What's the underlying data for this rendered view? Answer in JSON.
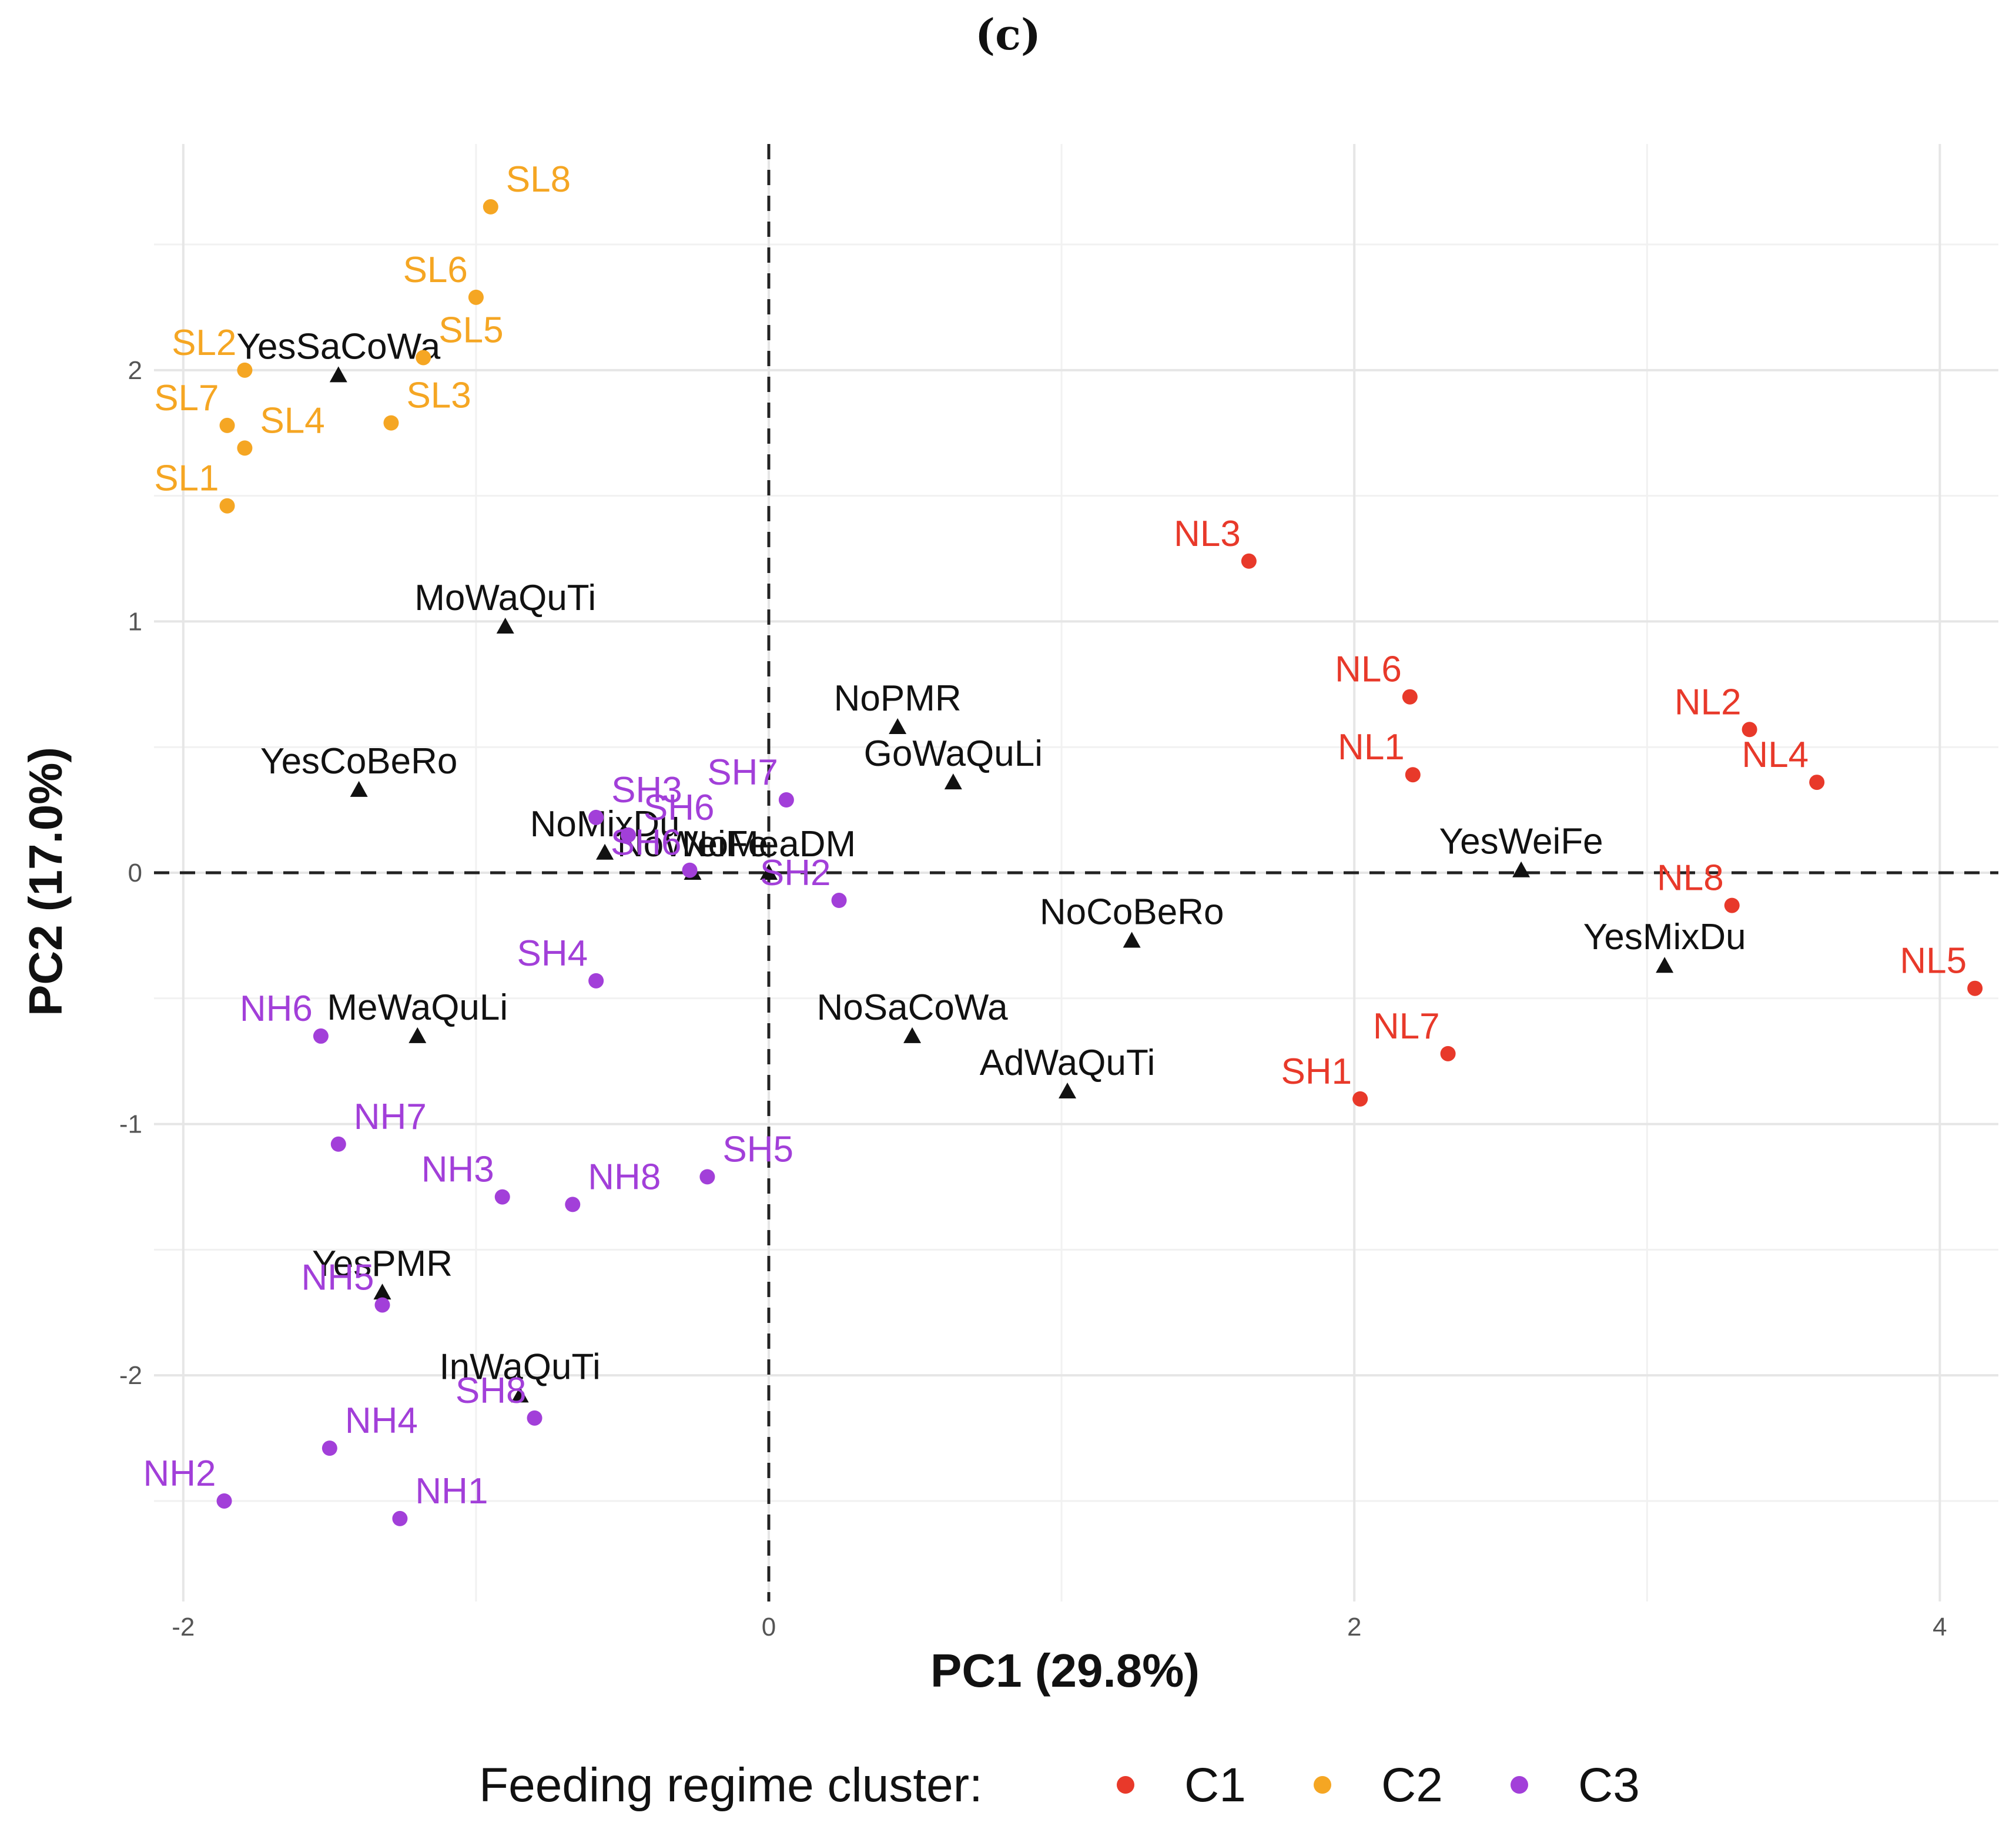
{
  "panel_label": "(c)",
  "chart_data": {
    "type": "scatter",
    "title": "",
    "xlabel": "PC1 (29.8%)",
    "ylabel": "PC2 (17.0%)",
    "xlim": [
      -2.1,
      4.2
    ],
    "ylim": [
      -2.9,
      2.9
    ],
    "xticks": [
      -2,
      0,
      2,
      4
    ],
    "yticks": [
      -2,
      -1,
      0,
      1,
      2
    ],
    "grid": true,
    "reference_lines": {
      "x": 0,
      "y": 0,
      "style": "dashed"
    },
    "legend": {
      "title": "Feeding regime cluster:",
      "position": "bottom",
      "entries": [
        {
          "name": "C1",
          "color": "#e8392a"
        },
        {
          "name": "C2",
          "color": "#f5a623"
        },
        {
          "name": "C3",
          "color": "#a23fd9"
        }
      ]
    },
    "series": [
      {
        "name": "C1",
        "color": "#e8392a",
        "points": [
          {
            "label": "NL3",
            "x": 1.64,
            "y": 1.24
          },
          {
            "label": "NL6",
            "x": 2.19,
            "y": 0.7
          },
          {
            "label": "NL1",
            "x": 2.2,
            "y": 0.39
          },
          {
            "label": "NL2",
            "x": 3.35,
            "y": 0.57
          },
          {
            "label": "NL4",
            "x": 3.58,
            "y": 0.36
          },
          {
            "label": "NL8",
            "x": 3.29,
            "y": -0.13
          },
          {
            "label": "NL5",
            "x": 4.12,
            "y": -0.46
          },
          {
            "label": "NL7",
            "x": 2.32,
            "y": -0.72
          },
          {
            "label": "SH1",
            "x": 2.02,
            "y": -0.9
          }
        ]
      },
      {
        "name": "C2",
        "color": "#f5a623",
        "points": [
          {
            "label": "SL8",
            "x": -0.95,
            "y": 2.65
          },
          {
            "label": "SL6",
            "x": -1.0,
            "y": 2.29
          },
          {
            "label": "SL5",
            "x": -1.18,
            "y": 2.05
          },
          {
            "label": "SL2",
            "x": -1.79,
            "y": 2.0
          },
          {
            "label": "SL3",
            "x": -1.29,
            "y": 1.79
          },
          {
            "label": "SL7",
            "x": -1.85,
            "y": 1.78
          },
          {
            "label": "SL4",
            "x": -1.79,
            "y": 1.69
          },
          {
            "label": "SL1",
            "x": -1.85,
            "y": 1.46
          }
        ]
      },
      {
        "name": "C3",
        "color": "#a23fd9",
        "points": [
          {
            "label": "SH3",
            "x": -0.59,
            "y": 0.22
          },
          {
            "label": "SH7",
            "x": 0.06,
            "y": 0.29
          },
          {
            "label": "SH6",
            "x": -0.48,
            "y": 0.15
          },
          {
            "label": "SH6",
            "x": -0.27,
            "y": 0.01
          },
          {
            "label": "SH2",
            "x": 0.24,
            "y": -0.11
          },
          {
            "label": "SH4",
            "x": -0.59,
            "y": -0.43
          },
          {
            "label": "SH5",
            "x": -0.21,
            "y": -1.21
          },
          {
            "label": "NH6",
            "x": -1.53,
            "y": -0.65
          },
          {
            "label": "NH7",
            "x": -1.47,
            "y": -1.08
          },
          {
            "label": "NH3",
            "x": -0.91,
            "y": -1.29
          },
          {
            "label": "NH8",
            "x": -0.67,
            "y": -1.32
          },
          {
            "label": "NH5",
            "x": -1.32,
            "y": -1.72
          },
          {
            "label": "NH4",
            "x": -1.5,
            "y": -2.29
          },
          {
            "label": "NH2",
            "x": -1.86,
            "y": -2.5
          },
          {
            "label": "NH1",
            "x": -1.26,
            "y": -2.57
          },
          {
            "label": "SH8",
            "x": -0.8,
            "y": -2.17
          }
        ]
      }
    ],
    "variables": [
      {
        "label": "YesSaCoWa",
        "x": -1.47,
        "y": 1.98
      },
      {
        "label": "MoWaQuTi",
        "x": -0.9,
        "y": 0.98
      },
      {
        "label": "YesCoBeRo",
        "x": -1.4,
        "y": 0.33
      },
      {
        "label": "NoMixDu",
        "x": -0.56,
        "y": 0.08
      },
      {
        "label": "NoWeiFe",
        "x": -0.26,
        "y": 0.0
      },
      {
        "label": "NoMeaDM",
        "x": 0.0,
        "y": 0.0
      },
      {
        "label": "NoPMR",
        "x": 0.44,
        "y": 0.58
      },
      {
        "label": "GoWaQuLi",
        "x": 0.63,
        "y": 0.36
      },
      {
        "label": "NoCoBeRo",
        "x": 1.24,
        "y": -0.27
      },
      {
        "label": "YesWeiFe",
        "x": 2.57,
        "y": 0.01
      },
      {
        "label": "YesMixDu",
        "x": 3.06,
        "y": -0.37
      },
      {
        "label": "MeWaQuLi",
        "x": -1.2,
        "y": -0.65
      },
      {
        "label": "NoSaCoWa",
        "x": 0.49,
        "y": -0.65
      },
      {
        "label": "AdWaQuTi",
        "x": 1.02,
        "y": -0.87
      },
      {
        "label": "YesPMR",
        "x": -1.32,
        "y": -1.67
      },
      {
        "label": "InWaQuTi",
        "x": -0.85,
        "y": -2.08
      }
    ]
  }
}
